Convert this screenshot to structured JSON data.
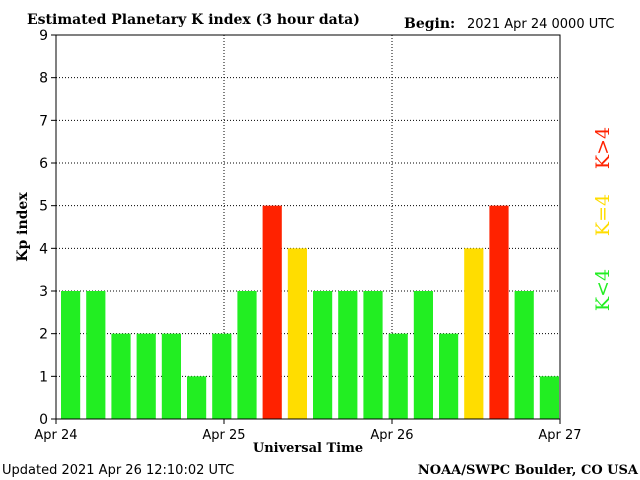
{
  "chart_data": {
    "type": "bar",
    "title": "Estimated Planetary K index (3 hour data)",
    "begin_label": "Begin:",
    "begin_value": "2021 Apr 24 0000 UTC",
    "xlabel": "Universal Time",
    "ylabel": "Kp index",
    "ylim": [
      0,
      9
    ],
    "yticks": [
      "0",
      "1",
      "2",
      "3",
      "4",
      "5",
      "6",
      "7",
      "8",
      "9"
    ],
    "xlim_days": [
      0,
      3
    ],
    "xticks": [
      "Apr 24",
      "Apr 25",
      "Apr 26",
      "Apr 27"
    ],
    "grid": true,
    "values": [
      3,
      3,
      2,
      2,
      2,
      1,
      2,
      3,
      5,
      4,
      3,
      3,
      3,
      2,
      3,
      2,
      4,
      5,
      3,
      1
    ],
    "legend": {
      "placement": "right",
      "items": [
        {
          "label": "K<4",
          "color": "#22ee22"
        },
        {
          "label": "K=4",
          "color": "#ffdd00"
        },
        {
          "label": "K>4",
          "color": "#ff2200"
        }
      ]
    },
    "updated": "Updated 2021 Apr 26 12:10:02 UTC",
    "credit": "NOAA/SWPC Boulder, CO USA"
  }
}
